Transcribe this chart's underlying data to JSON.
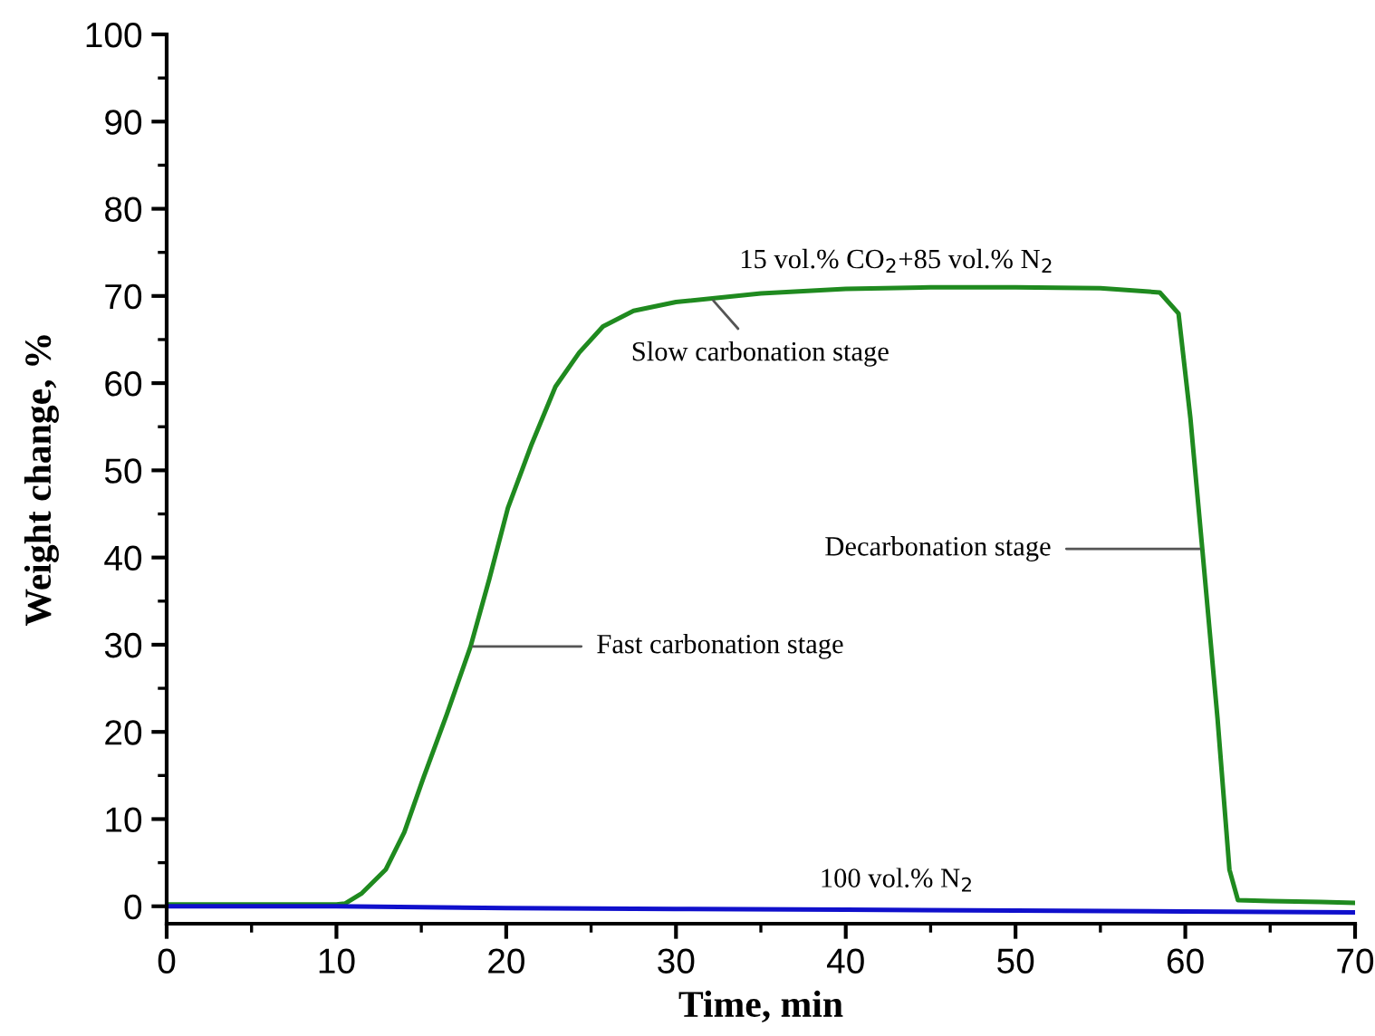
{
  "chart_data": {
    "type": "line",
    "xlabel": "Time, min",
    "ylabel": "Weight change, %",
    "xlim": [
      0,
      70
    ],
    "ylim": [
      -2,
      100
    ],
    "xticks": [
      0,
      10,
      20,
      30,
      40,
      50,
      60,
      70
    ],
    "yticks": [
      0,
      10,
      20,
      30,
      40,
      50,
      60,
      70,
      80,
      90,
      100
    ],
    "grid": false,
    "legend": false,
    "marker": "none",
    "line_style": "solid",
    "series": [
      {
        "name": "15 vol.% CO$_{2}$+85 vol.% N$_{2}$",
        "color": "#1f8a1f",
        "x": [
          0,
          5,
          10,
          10.5,
          11.5,
          12.9,
          14,
          15.1,
          16.5,
          17.9,
          19,
          20.1,
          21.5,
          22.9,
          24.3,
          25.7,
          27.5,
          30,
          35,
          40,
          45,
          50,
          55,
          58.5,
          59.6,
          60.3,
          61,
          61.9,
          62.6,
          63.1,
          65,
          68,
          69.9
        ],
        "values": [
          0.2,
          0.2,
          0.2,
          0.3,
          1.5,
          4.2,
          8.5,
          14.6,
          22,
          29.8,
          37.5,
          45.7,
          53,
          59.6,
          63.5,
          66.5,
          68.3,
          69.3,
          70.3,
          70.8,
          71,
          71,
          70.9,
          70.4,
          68,
          56,
          41,
          21.5,
          4.2,
          0.7,
          0.6,
          0.5,
          0.4
        ]
      },
      {
        "name": "100 vol.% N$_{2}$",
        "color": "#1010cc",
        "x": [
          0,
          10,
          20,
          30,
          40,
          50,
          60,
          70
        ],
        "values": [
          0,
          0,
          -0.2,
          -0.3,
          -0.4,
          -0.5,
          -0.6,
          -0.7
        ]
      }
    ],
    "annotations": [
      {
        "text": "Fast carbonation stage",
        "x": 17.9,
        "y": 29.8
      },
      {
        "text": "Slow carbonation stage",
        "x": 32.1,
        "y": 69.7
      },
      {
        "text": "Decarbonation stage",
        "x": 61,
        "y": 41
      }
    ]
  }
}
